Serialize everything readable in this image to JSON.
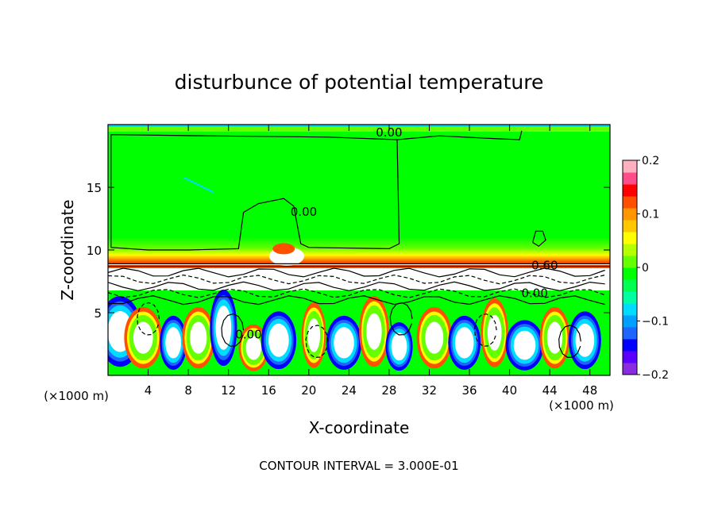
{
  "chart_data": {
    "type": "heatmap",
    "title": "disturbunce of potential temperature",
    "xlabel": "X-coordinate",
    "ylabel": "Z-coordinate",
    "x_unit_left": "(×1000 m)",
    "x_unit_right": "(×1000 m)",
    "xlim": [
      0,
      50
    ],
    "ylim": [
      0,
      20
    ],
    "x_ticks": [
      4,
      8,
      12,
      16,
      20,
      24,
      28,
      32,
      36,
      40,
      44,
      48
    ],
    "x_tick_labels": [
      "4",
      "8",
      "12",
      "16",
      "20",
      "24",
      "28",
      "32",
      "36",
      "40",
      "44",
      "48"
    ],
    "y_ticks": [
      5,
      10,
      15
    ],
    "y_tick_labels": [
      "5",
      "10",
      "15"
    ],
    "colorbar": {
      "range": [
        -0.2,
        0.2
      ],
      "ticks": [
        0.2,
        0.1,
        0,
        -0.1,
        -0.2
      ],
      "tick_labels": [
        "0.2",
        "0.1",
        "0",
        "−0.1",
        "−0.2"
      ],
      "colors": [
        "#8a2be2",
        "#5a00ff",
        "#0000ff",
        "#1e64ff",
        "#00a0ff",
        "#00dcff",
        "#00ffa0",
        "#00ff50",
        "#00ff00",
        "#64ff00",
        "#b4ff00",
        "#ffff00",
        "#ffc800",
        "#ff9600",
        "#ff5000",
        "#ff0000",
        "#ff4d8a",
        "#ffb0c0"
      ]
    },
    "contour_labels": [
      {
        "text": "0.00",
        "x": 28,
        "y": 19.1
      },
      {
        "text": "0.00",
        "x": 19.5,
        "y": 12.8
      },
      {
        "text": "0.60",
        "x": 43.5,
        "y": 8.5
      },
      {
        "text": "0.00",
        "x": 42.5,
        "y": 6.3
      },
      {
        "text": "0.00",
        "x": 14,
        "y": 3.0
      }
    ],
    "footer": "CONTOUR INTERVAL = 3.000E-01"
  }
}
